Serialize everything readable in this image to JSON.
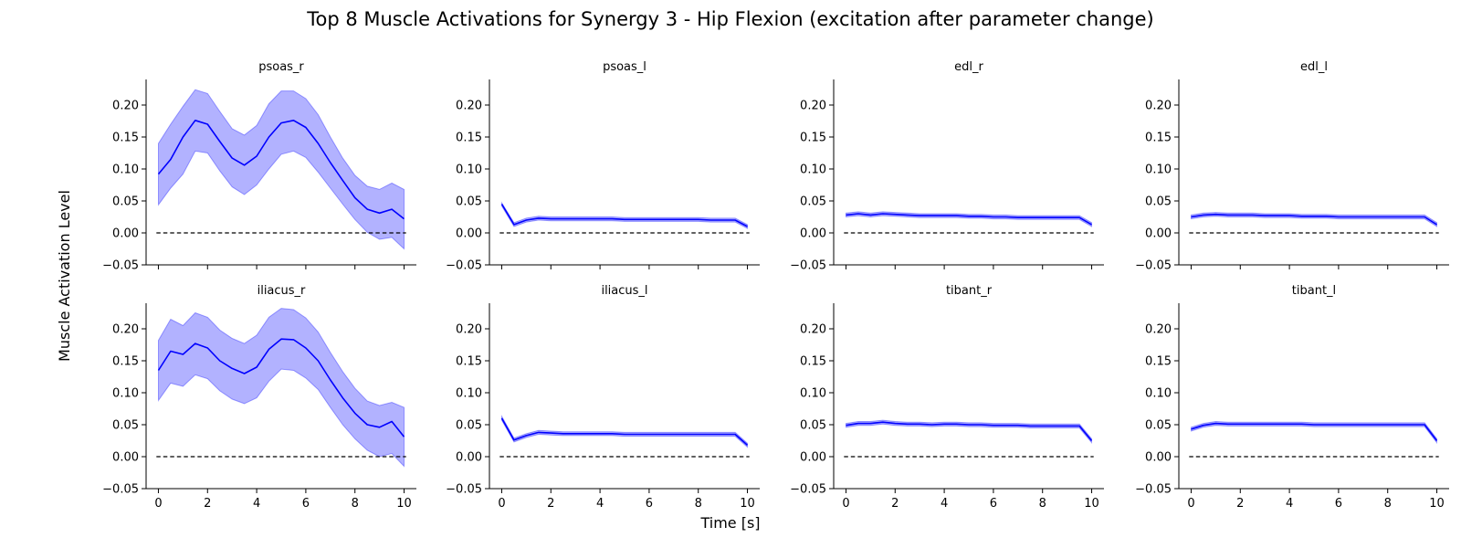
{
  "chart_data": {
    "type": "line",
    "title": "Top 8 Muscle Activations for Synergy 3 - Hip Flexion (excitation after parameter change)",
    "xlabel": "Time [s]",
    "ylabel": "Muscle Activation Level",
    "xlim": [
      -0.5,
      10.5
    ],
    "ylim": [
      -0.05,
      0.24
    ],
    "xticks": [
      0,
      2,
      4,
      6,
      8,
      10
    ],
    "yticks": [
      -0.05,
      0.0,
      0.05,
      0.1,
      0.15,
      0.2
    ],
    "ytick_labels": [
      "−0.05",
      "0.00",
      "0.05",
      "0.10",
      "0.15",
      "0.20"
    ],
    "grid": false,
    "reference_line": {
      "y": 0,
      "style": "dashed",
      "color": "#000000"
    },
    "line_color": "#0000ff",
    "x": [
      0,
      0.5,
      1,
      1.5,
      2,
      2.5,
      3,
      3.5,
      4,
      4.5,
      5,
      5.5,
      6,
      6.5,
      7,
      7.5,
      8,
      8.5,
      9,
      9.5,
      10
    ],
    "panels": [
      {
        "name": "psoas_r",
        "mean": [
          0.092,
          0.115,
          0.15,
          0.176,
          0.17,
          0.143,
          0.117,
          0.106,
          0.12,
          0.15,
          0.172,
          0.176,
          0.165,
          0.14,
          0.11,
          0.082,
          0.055,
          0.037,
          0.031,
          0.037,
          0.022
        ],
        "upper": [
          0.14,
          0.17,
          0.198,
          0.224,
          0.218,
          0.19,
          0.163,
          0.153,
          0.168,
          0.202,
          0.222,
          0.222,
          0.21,
          0.185,
          0.15,
          0.117,
          0.09,
          0.073,
          0.068,
          0.078,
          0.068
        ],
        "lower": [
          0.044,
          0.07,
          0.092,
          0.128,
          0.125,
          0.097,
          0.072,
          0.06,
          0.075,
          0.1,
          0.123,
          0.128,
          0.118,
          0.095,
          0.07,
          0.045,
          0.021,
          0.001,
          -0.01,
          -0.007,
          -0.025
        ]
      },
      {
        "name": "psoas_l",
        "mean": [
          0.045,
          0.013,
          0.02,
          0.023,
          0.022,
          0.022,
          0.022,
          0.022,
          0.022,
          0.022,
          0.021,
          0.021,
          0.021,
          0.021,
          0.021,
          0.021,
          0.021,
          0.02,
          0.02,
          0.02,
          0.01
        ],
        "upper": [
          0.047,
          0.016,
          0.023,
          0.026,
          0.025,
          0.025,
          0.025,
          0.025,
          0.025,
          0.025,
          0.024,
          0.024,
          0.024,
          0.024,
          0.024,
          0.024,
          0.024,
          0.023,
          0.023,
          0.023,
          0.013
        ],
        "lower": [
          0.042,
          0.01,
          0.017,
          0.02,
          0.019,
          0.019,
          0.019,
          0.019,
          0.019,
          0.019,
          0.018,
          0.018,
          0.018,
          0.018,
          0.018,
          0.018,
          0.018,
          0.017,
          0.017,
          0.017,
          0.007
        ]
      },
      {
        "name": "edl_r",
        "mean": [
          0.028,
          0.03,
          0.028,
          0.03,
          0.029,
          0.028,
          0.027,
          0.027,
          0.027,
          0.027,
          0.026,
          0.026,
          0.025,
          0.025,
          0.024,
          0.024,
          0.024,
          0.024,
          0.024,
          0.024,
          0.013
        ],
        "upper": [
          0.031,
          0.033,
          0.031,
          0.033,
          0.032,
          0.031,
          0.03,
          0.03,
          0.03,
          0.03,
          0.029,
          0.029,
          0.028,
          0.028,
          0.027,
          0.027,
          0.027,
          0.027,
          0.027,
          0.027,
          0.016
        ],
        "lower": [
          0.025,
          0.027,
          0.025,
          0.027,
          0.026,
          0.025,
          0.024,
          0.024,
          0.024,
          0.024,
          0.023,
          0.023,
          0.022,
          0.022,
          0.021,
          0.021,
          0.021,
          0.021,
          0.021,
          0.021,
          0.01
        ]
      },
      {
        "name": "edl_l",
        "mean": [
          0.025,
          0.028,
          0.029,
          0.028,
          0.028,
          0.028,
          0.027,
          0.027,
          0.027,
          0.026,
          0.026,
          0.026,
          0.025,
          0.025,
          0.025,
          0.025,
          0.025,
          0.025,
          0.025,
          0.025,
          0.013
        ],
        "upper": [
          0.028,
          0.031,
          0.032,
          0.031,
          0.031,
          0.031,
          0.03,
          0.03,
          0.03,
          0.029,
          0.029,
          0.029,
          0.028,
          0.028,
          0.028,
          0.028,
          0.028,
          0.028,
          0.028,
          0.028,
          0.016
        ],
        "lower": [
          0.022,
          0.025,
          0.026,
          0.025,
          0.025,
          0.025,
          0.024,
          0.024,
          0.024,
          0.023,
          0.023,
          0.023,
          0.022,
          0.022,
          0.022,
          0.022,
          0.022,
          0.022,
          0.022,
          0.022,
          0.01
        ]
      },
      {
        "name": "iliacus_r",
        "mean": [
          0.135,
          0.165,
          0.16,
          0.177,
          0.17,
          0.15,
          0.138,
          0.13,
          0.14,
          0.168,
          0.184,
          0.183,
          0.17,
          0.15,
          0.12,
          0.092,
          0.068,
          0.05,
          0.046,
          0.055,
          0.031
        ],
        "upper": [
          0.182,
          0.215,
          0.205,
          0.225,
          0.218,
          0.198,
          0.185,
          0.177,
          0.19,
          0.218,
          0.232,
          0.23,
          0.217,
          0.195,
          0.163,
          0.133,
          0.107,
          0.087,
          0.08,
          0.085,
          0.077
        ],
        "lower": [
          0.088,
          0.115,
          0.11,
          0.128,
          0.122,
          0.103,
          0.09,
          0.083,
          0.092,
          0.118,
          0.137,
          0.135,
          0.123,
          0.105,
          0.077,
          0.05,
          0.028,
          0.01,
          0.0,
          0.005,
          -0.015
        ]
      },
      {
        "name": "iliacus_l",
        "mean": [
          0.06,
          0.026,
          0.033,
          0.038,
          0.037,
          0.036,
          0.036,
          0.036,
          0.036,
          0.036,
          0.035,
          0.035,
          0.035,
          0.035,
          0.035,
          0.035,
          0.035,
          0.035,
          0.035,
          0.035,
          0.018
        ],
        "upper": [
          0.063,
          0.029,
          0.036,
          0.041,
          0.04,
          0.039,
          0.039,
          0.039,
          0.039,
          0.039,
          0.038,
          0.038,
          0.038,
          0.038,
          0.038,
          0.038,
          0.038,
          0.038,
          0.038,
          0.038,
          0.021
        ],
        "lower": [
          0.057,
          0.023,
          0.03,
          0.035,
          0.034,
          0.033,
          0.033,
          0.033,
          0.033,
          0.033,
          0.032,
          0.032,
          0.032,
          0.032,
          0.032,
          0.032,
          0.032,
          0.032,
          0.032,
          0.032,
          0.015
        ]
      },
      {
        "name": "tibant_r",
        "mean": [
          0.049,
          0.052,
          0.052,
          0.054,
          0.052,
          0.051,
          0.051,
          0.05,
          0.051,
          0.051,
          0.05,
          0.05,
          0.049,
          0.049,
          0.049,
          0.048,
          0.048,
          0.048,
          0.048,
          0.048,
          0.025
        ],
        "upper": [
          0.052,
          0.055,
          0.055,
          0.057,
          0.055,
          0.054,
          0.054,
          0.053,
          0.054,
          0.054,
          0.053,
          0.053,
          0.052,
          0.052,
          0.052,
          0.051,
          0.051,
          0.051,
          0.051,
          0.051,
          0.028
        ],
        "lower": [
          0.046,
          0.049,
          0.049,
          0.051,
          0.049,
          0.048,
          0.048,
          0.047,
          0.048,
          0.048,
          0.047,
          0.047,
          0.046,
          0.046,
          0.046,
          0.045,
          0.045,
          0.045,
          0.045,
          0.045,
          0.022
        ]
      },
      {
        "name": "tibant_l",
        "mean": [
          0.043,
          0.049,
          0.052,
          0.051,
          0.051,
          0.051,
          0.051,
          0.051,
          0.051,
          0.051,
          0.05,
          0.05,
          0.05,
          0.05,
          0.05,
          0.05,
          0.05,
          0.05,
          0.05,
          0.05,
          0.025
        ],
        "upper": [
          0.046,
          0.052,
          0.055,
          0.054,
          0.054,
          0.054,
          0.054,
          0.054,
          0.054,
          0.054,
          0.053,
          0.053,
          0.053,
          0.053,
          0.053,
          0.053,
          0.053,
          0.053,
          0.053,
          0.053,
          0.028
        ],
        "lower": [
          0.04,
          0.046,
          0.049,
          0.048,
          0.048,
          0.048,
          0.048,
          0.048,
          0.048,
          0.048,
          0.047,
          0.047,
          0.047,
          0.047,
          0.047,
          0.047,
          0.047,
          0.047,
          0.047,
          0.047,
          0.022
        ]
      }
    ]
  }
}
